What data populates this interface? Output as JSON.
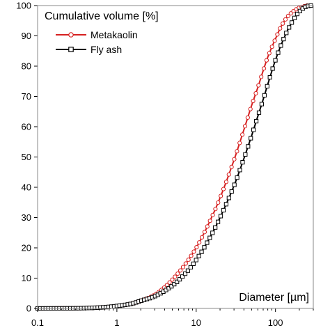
{
  "chart_data": {
    "type": "line",
    "x_scale": "log",
    "xlim": [
      0.1,
      300
    ],
    "ylim": [
      0,
      100
    ],
    "xlabel": "Diameter [µm]",
    "ylabel": "Cumulative volume [%]",
    "x_ticks": [
      {
        "value": 0.1,
        "label": "0.1"
      },
      {
        "value": 1,
        "label": "1"
      },
      {
        "value": 10,
        "label": "10"
      },
      {
        "value": 100,
        "label": "100"
      }
    ],
    "y_ticks": [
      0,
      10,
      20,
      30,
      40,
      50,
      60,
      70,
      80,
      90,
      100
    ],
    "grid": false,
    "legend_position": "top-left",
    "series": [
      {
        "name": "Metakaolin",
        "color": "#d62020",
        "marker": "circle",
        "points": [
          [
            0.1,
            0
          ],
          [
            0.3,
            0.05
          ],
          [
            0.5,
            0.2
          ],
          [
            0.7,
            0.4
          ],
          [
            1,
            0.8
          ],
          [
            1.5,
            1.5
          ],
          [
            2,
            2.5
          ],
          [
            3,
            4.5
          ],
          [
            4,
            7
          ],
          [
            5,
            9.5
          ],
          [
            7,
            14
          ],
          [
            10,
            20
          ],
          [
            15,
            29
          ],
          [
            20,
            36.5
          ],
          [
            30,
            49
          ],
          [
            40,
            59
          ],
          [
            50,
            67
          ],
          [
            60,
            73
          ],
          [
            70,
            78.5
          ],
          [
            80,
            83
          ],
          [
            100,
            89
          ],
          [
            120,
            93.5
          ],
          [
            150,
            97
          ],
          [
            200,
            99.3
          ],
          [
            250,
            100
          ]
        ]
      },
      {
        "name": "Fly ash",
        "color": "#000000",
        "marker": "square",
        "points": [
          [
            0.1,
            0
          ],
          [
            0.3,
            0.05
          ],
          [
            0.5,
            0.2
          ],
          [
            0.7,
            0.4
          ],
          [
            1,
            0.8
          ],
          [
            1.5,
            1.5
          ],
          [
            2,
            2.5
          ],
          [
            3,
            4
          ],
          [
            4,
            5.8
          ],
          [
            5,
            7.5
          ],
          [
            7,
            11
          ],
          [
            10,
            16
          ],
          [
            15,
            23.5
          ],
          [
            20,
            30
          ],
          [
            30,
            40.5
          ],
          [
            40,
            49.5
          ],
          [
            50,
            57
          ],
          [
            60,
            63.5
          ],
          [
            70,
            69
          ],
          [
            80,
            74
          ],
          [
            100,
            82
          ],
          [
            120,
            87.5
          ],
          [
            150,
            93
          ],
          [
            200,
            98
          ],
          [
            250,
            99.8
          ],
          [
            280,
            100
          ]
        ]
      }
    ]
  }
}
